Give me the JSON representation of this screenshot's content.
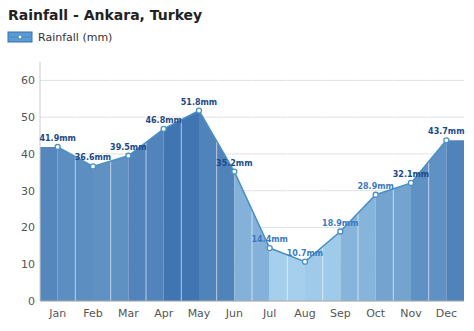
{
  "chart_data": {
    "type": "area",
    "title": "Rainfall - Ankara, Turkey",
    "categories": [
      "Jan",
      "Feb",
      "Mar",
      "Apr",
      "May",
      "Jun",
      "Jul",
      "Aug",
      "Sep",
      "Oct",
      "Nov",
      "Dec"
    ],
    "series": [
      {
        "name": "Rainfall (mm)",
        "color": "#4a90c4",
        "marker": "circle",
        "values": [
          41.9,
          36.6,
          39.5,
          46.8,
          51.8,
          35.2,
          14.4,
          10.7,
          18.9,
          28.9,
          32.1,
          43.7
        ],
        "value_labels": [
          "41.9mm",
          "36.6mm",
          "39.5mm",
          "46.8mm",
          "51.8mm",
          "35.2mm",
          "14.4mm",
          "10.7mm",
          "18.9mm",
          "28.9mm",
          "32.1mm",
          "43.7mm"
        ]
      }
    ],
    "ylim": [
      0,
      65
    ],
    "yticks": [
      0,
      10,
      20,
      30,
      40,
      50,
      60
    ],
    "grid": true,
    "legend": "top",
    "data_labels": true
  }
}
